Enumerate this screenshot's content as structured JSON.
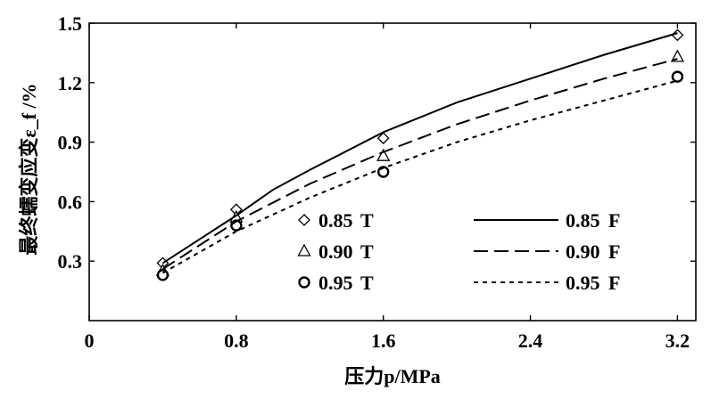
{
  "chart_data": {
    "type": "scatter",
    "xlabel": "压力p/MPa",
    "ylabel": "最终蠕变应变ε_f /%",
    "xlim": [
      0,
      3.3
    ],
    "ylim": [
      0,
      1.5
    ],
    "x_ticks": [
      "0",
      "0.8",
      "1.6",
      "2.4",
      "3.2"
    ],
    "x_tick_values": [
      0,
      0.8,
      1.6,
      2.4,
      3.2
    ],
    "y_ticks": [
      "0.3",
      "0.6",
      "0.9",
      "1.2",
      "1.5"
    ],
    "y_tick_values": [
      0.3,
      0.6,
      0.9,
      1.2,
      1.5
    ],
    "grid": false,
    "legend_placement": "inside lower-right",
    "series": [
      {
        "name": "0.85 T",
        "kind": "points",
        "marker": "diamond",
        "x": [
          0.4,
          0.8,
          1.6,
          3.2
        ],
        "y": [
          0.29,
          0.56,
          0.92,
          1.44
        ]
      },
      {
        "name": "0.90 T",
        "kind": "points",
        "marker": "triangle",
        "x": [
          0.4,
          0.8,
          1.6,
          3.2
        ],
        "y": [
          0.25,
          0.52,
          0.83,
          1.33
        ]
      },
      {
        "name": "0.95 T",
        "kind": "points",
        "marker": "circle",
        "x": [
          0.4,
          0.8,
          1.6,
          3.2
        ],
        "y": [
          0.23,
          0.48,
          0.75,
          1.23
        ]
      },
      {
        "name": "0.85 F",
        "kind": "line",
        "dash": "solid",
        "x": [
          0.4,
          0.8,
          1.0,
          1.2,
          1.6,
          2.0,
          2.4,
          2.8,
          3.2
        ],
        "y": [
          0.29,
          0.53,
          0.66,
          0.76,
          0.95,
          1.1,
          1.22,
          1.34,
          1.45
        ]
      },
      {
        "name": "0.90 F",
        "kind": "line",
        "dash": "long-dash",
        "x": [
          0.4,
          0.8,
          1.2,
          1.6,
          2.0,
          2.4,
          2.8,
          3.2
        ],
        "y": [
          0.26,
          0.5,
          0.69,
          0.85,
          0.99,
          1.11,
          1.22,
          1.32
        ]
      },
      {
        "name": "0.95 F",
        "kind": "line",
        "dash": "short-dash",
        "x": [
          0.4,
          0.8,
          1.2,
          1.6,
          2.0,
          2.4,
          2.8,
          3.2
        ],
        "y": [
          0.24,
          0.45,
          0.62,
          0.77,
          0.9,
          1.01,
          1.11,
          1.21
        ]
      }
    ],
    "legend": {
      "entries": [
        {
          "num": "0.85",
          "code": "T",
          "series": 0
        },
        {
          "num": "0.90",
          "code": "T",
          "series": 1
        },
        {
          "num": "0.95",
          "code": "T",
          "series": 2
        },
        {
          "num": "0.85",
          "code": "F",
          "series": 3
        },
        {
          "num": "0.90",
          "code": "F",
          "series": 4
        },
        {
          "num": "0.95",
          "code": "F",
          "series": 5
        }
      ]
    }
  }
}
